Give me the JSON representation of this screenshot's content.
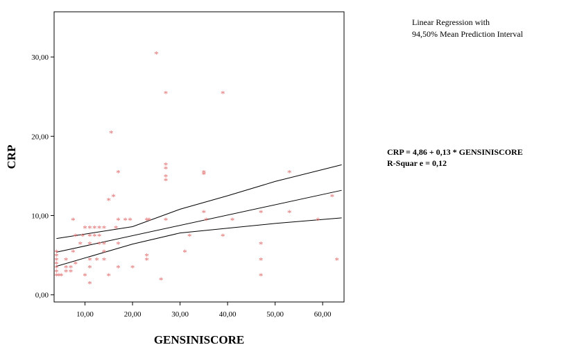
{
  "chart_data": {
    "type": "scatter",
    "xlabel": "GENSINISCORE",
    "ylabel": "CRP",
    "xlim": [
      3.5,
      64.5
    ],
    "ylim": [
      -0.9,
      35.7
    ],
    "x_ticks": [
      10,
      20,
      30,
      40,
      50,
      60
    ],
    "x_tick_labels": [
      "10,00",
      "20,00",
      "30,00",
      "40,00",
      "50,00",
      "60,00"
    ],
    "y_ticks": [
      0,
      10,
      20,
      30
    ],
    "y_tick_labels": [
      "0,00",
      "10,00",
      "20,00",
      "30,00"
    ],
    "legend_lines": [
      "Linear Regression with",
      "94,50% Mean Prediction Interval"
    ],
    "equation_lines": [
      "CRP = 4,86 + 0,13 * GENSINISCORE",
      "R-Squar e = 0,12"
    ],
    "marker_symbol": "*",
    "marker_color": "#e07070",
    "line_color": "#000000",
    "points": [
      [
        4,
        2.5
      ],
      [
        4,
        3
      ],
      [
        4,
        3.5
      ],
      [
        4,
        4
      ],
      [
        4,
        4.5
      ],
      [
        4,
        5
      ],
      [
        4,
        5.5
      ],
      [
        4.5,
        2.5
      ],
      [
        5,
        2.5
      ],
      [
        6,
        3
      ],
      [
        6,
        3.5
      ],
      [
        6,
        4.5
      ],
      [
        7,
        3
      ],
      [
        7,
        3.5
      ],
      [
        7.5,
        5.5
      ],
      [
        7.5,
        9.5
      ],
      [
        8,
        4
      ],
      [
        8,
        7.5
      ],
      [
        9,
        6.5
      ],
      [
        9.5,
        7.5
      ],
      [
        10,
        8.5
      ],
      [
        10,
        2.5
      ],
      [
        11,
        1.5
      ],
      [
        11,
        3.5
      ],
      [
        11,
        4.5
      ],
      [
        11,
        6.5
      ],
      [
        11,
        7.5
      ],
      [
        11,
        8.5
      ],
      [
        12,
        7.5
      ],
      [
        12,
        8.5
      ],
      [
        12.5,
        4.5
      ],
      [
        13,
        6.5
      ],
      [
        13,
        7.5
      ],
      [
        13,
        8.5
      ],
      [
        14,
        8.5
      ],
      [
        14,
        5.5
      ],
      [
        14,
        6.5
      ],
      [
        14,
        4.5
      ],
      [
        15,
        2.5
      ],
      [
        15,
        12
      ],
      [
        15.5,
        20.5
      ],
      [
        16,
        12.5
      ],
      [
        16.5,
        8.5
      ],
      [
        17,
        3.5
      ],
      [
        17,
        6.5
      ],
      [
        17,
        9.5
      ],
      [
        17,
        15.5
      ],
      [
        18.5,
        9.5
      ],
      [
        19.5,
        9.5
      ],
      [
        20,
        3.5
      ],
      [
        23,
        4.5
      ],
      [
        23,
        5
      ],
      [
        23,
        9.5
      ],
      [
        23.5,
        9.5
      ],
      [
        25,
        30.5
      ],
      [
        26,
        2
      ],
      [
        27,
        25.5
      ],
      [
        27,
        14.5
      ],
      [
        27,
        15
      ],
      [
        27,
        16
      ],
      [
        27,
        9.5
      ],
      [
        27,
        16.5
      ],
      [
        31,
        5.5
      ],
      [
        32,
        7.5
      ],
      [
        35,
        15.5
      ],
      [
        35,
        15.3
      ],
      [
        35,
        10.5
      ],
      [
        35.5,
        9.5
      ],
      [
        39,
        7.5
      ],
      [
        39,
        25.5
      ],
      [
        41,
        9.5
      ],
      [
        47,
        2.5
      ],
      [
        47,
        4.5
      ],
      [
        47,
        6.5
      ],
      [
        47,
        10.5
      ],
      [
        53,
        10.5
      ],
      [
        53,
        15.5
      ],
      [
        59,
        9.5
      ],
      [
        62,
        12.5
      ],
      [
        63,
        4.5
      ]
    ],
    "fit": {
      "intercept": 4.86,
      "slope": 0.13,
      "x_range": [
        4,
        64
      ]
    },
    "interval_upper": [
      [
        4,
        7.1
      ],
      [
        20,
        8.6
      ],
      [
        30,
        10.8
      ],
      [
        40,
        12.5
      ],
      [
        50,
        14.3
      ],
      [
        64,
        16.4
      ]
    ],
    "interval_lower": [
      [
        4,
        3.6
      ],
      [
        20,
        6.4
      ],
      [
        30,
        7.8
      ],
      [
        40,
        8.4
      ],
      [
        50,
        9
      ],
      [
        64,
        9.7
      ]
    ]
  }
}
